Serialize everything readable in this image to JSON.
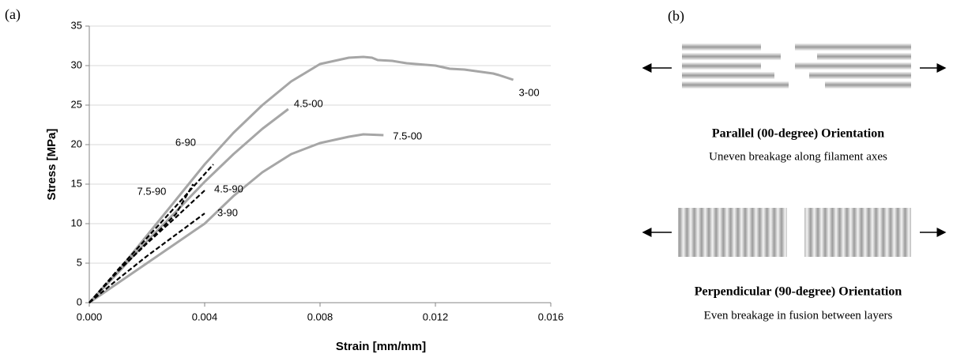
{
  "panel_a": "(a)",
  "chart_data": {
    "type": "line",
    "xlabel": "Strain [mm/mm]",
    "ylabel": "Stress [MPa]",
    "xlim": [
      0,
      0.016
    ],
    "ylim": [
      0,
      35
    ],
    "xticks": [
      {
        "value": 0,
        "label": "0.000"
      },
      {
        "value": 0.004,
        "label": "0.004"
      },
      {
        "value": 0.008,
        "label": "0.008"
      },
      {
        "value": 0.012,
        "label": "0.012"
      },
      {
        "value": 0.016,
        "label": "0.016"
      }
    ],
    "yticks": [
      0,
      5,
      10,
      15,
      20,
      25,
      30,
      35
    ],
    "grid": true,
    "series": [
      {
        "name": "3-00",
        "color": "#a6a6a6",
        "line_style": "solid",
        "x": [
          0,
          0.001,
          0.002,
          0.003,
          0.004,
          0.005,
          0.006,
          0.007,
          0.008,
          0.009,
          0.0095,
          0.0098,
          0.01,
          0.0105,
          0.011,
          0.012,
          0.0125,
          0.013,
          0.014,
          0.0142,
          0.0147
        ],
        "values": [
          0,
          4,
          8.5,
          13,
          17.5,
          21.5,
          25,
          28,
          30.2,
          31,
          31.1,
          31,
          30.7,
          30.6,
          30.3,
          30,
          29.6,
          29.5,
          29,
          28.8,
          28.2
        ]
      },
      {
        "name": "4.5-00",
        "color": "#a6a6a6",
        "line_style": "solid",
        "x": [
          0,
          0.001,
          0.002,
          0.003,
          0.004,
          0.005,
          0.006,
          0.0069
        ],
        "values": [
          0,
          3.8,
          7.8,
          11.5,
          15.3,
          18.8,
          22,
          24.5
        ]
      },
      {
        "name": "7.5-00",
        "color": "#a6a6a6",
        "line_style": "solid",
        "x": [
          0,
          0.001,
          0.002,
          0.003,
          0.004,
          0.005,
          0.006,
          0.007,
          0.008,
          0.009,
          0.0095,
          0.0102
        ],
        "values": [
          0,
          2.5,
          5,
          7.5,
          10,
          13.5,
          16.5,
          18.8,
          20.2,
          21,
          21.3,
          21.2
        ]
      },
      {
        "name": "6-90",
        "color": "#000000",
        "line_style": "dashed",
        "x": [
          0,
          0.001,
          0.002,
          0.003,
          0.0043
        ],
        "values": [
          0,
          4.2,
          8.2,
          12.2,
          17.5
        ]
      },
      {
        "name": "7.5-90",
        "color": "#000000",
        "line_style": "dashed",
        "x": [
          0,
          0.001,
          0.002,
          0.003,
          0.0036
        ],
        "values": [
          0,
          4,
          7.6,
          11.2,
          15
        ]
      },
      {
        "name": "4.5-90",
        "color": "#000000",
        "line_style": "dashed",
        "x": [
          0,
          0.001,
          0.002,
          0.003,
          0.004
        ],
        "values": [
          0,
          4,
          7.5,
          10.8,
          14.2
        ]
      },
      {
        "name": "3-90",
        "color": "#000000",
        "line_style": "dashed",
        "x": [
          0,
          0.001,
          0.002,
          0.003,
          0.004
        ],
        "values": [
          0,
          3,
          5.9,
          8.6,
          11.3
        ]
      }
    ]
  },
  "panel_b": {
    "label": "(b)",
    "parallel": {
      "title": "Parallel (00-degree) Orientation",
      "caption": "Uneven breakage along filament axes"
    },
    "perpendicular": {
      "title": "Perpendicular (90-degree) Orientation",
      "caption": "Even breakage in fusion between layers"
    }
  }
}
